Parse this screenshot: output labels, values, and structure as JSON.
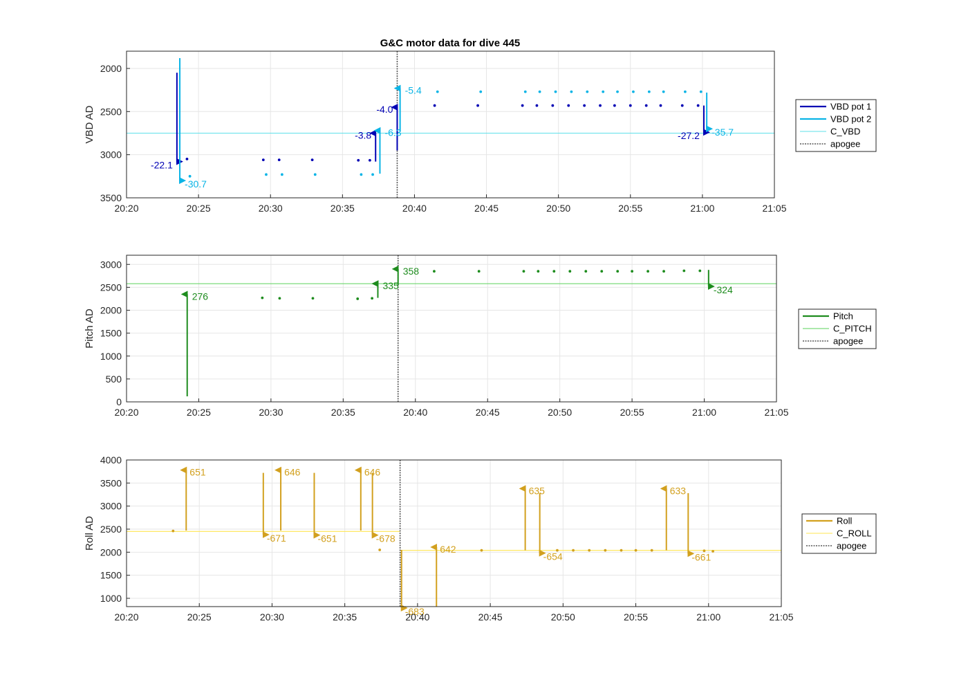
{
  "chart_data": [
    {
      "type": "line",
      "title": "G&C motor data for dive 445",
      "ylabel": "VBD AD",
      "xlabel": "",
      "x_ticks": [
        "20:20",
        "20:25",
        "20:30",
        "20:35",
        "20:40",
        "20:45",
        "20:50",
        "20:55",
        "21:00",
        "21:05"
      ],
      "xlim": [
        "20:20",
        "21:05"
      ],
      "ylim": [
        1800,
        3500
      ],
      "y_reversed": true,
      "y_ticks": [
        2000,
        2500,
        3000,
        3500
      ],
      "grid": true,
      "legend_position": "right",
      "colors": {
        "VBD pot 1": "#0000b4",
        "VBD pot 2": "#0ab4e6",
        "C_VBD": "#5ee0ea",
        "apogee": "#555555"
      },
      "series": [
        {
          "name": "VBD pot 1",
          "style": "moves",
          "moves": [
            {
              "t": "20:23.5",
              "from": 2050,
              "to": 3080,
              "label": "-22.1"
            },
            {
              "t": "20:37.3",
              "from": 3080,
              "to": 2750,
              "label": "-3.8"
            },
            {
              "t": "20:38.8",
              "from": 2950,
              "to": 2450,
              "label": "-4.0"
            },
            {
              "t": "21:00.1",
              "from": 2430,
              "to": 2740,
              "label": "-27.2"
            }
          ],
          "points": [
            [
              "20:24.2",
              3050
            ],
            [
              "20:29.5",
              3060
            ],
            [
              "20:30.6",
              3060
            ],
            [
              "20:32.9",
              3060
            ],
            [
              "20:36.1",
              3065
            ],
            [
              "20:36.9",
              3065
            ],
            [
              "20:41.4",
              2430
            ],
            [
              "20:44.4",
              2430
            ],
            [
              "20:47.5",
              2430
            ],
            [
              "20:48.5",
              2430
            ],
            [
              "20:49.6",
              2430
            ],
            [
              "20:50.7",
              2430
            ],
            [
              "20:51.8",
              2430
            ],
            [
              "20:52.9",
              2430
            ],
            [
              "20:53.9",
              2430
            ],
            [
              "20:55.0",
              2430
            ],
            [
              "20:56.1",
              2430
            ],
            [
              "20:57.1",
              2430
            ],
            [
              "20:58.6",
              2430
            ],
            [
              "20:59.7",
              2430
            ]
          ]
        },
        {
          "name": "VBD pot 2",
          "style": "moves",
          "moves": [
            {
              "t": "20:23.7",
              "from": 1880,
              "to": 3300,
              "label": "-30.7"
            },
            {
              "t": "20:37.6",
              "from": 3220,
              "to": 2720,
              "label": "-6.3"
            },
            {
              "t": "20:39.0",
              "from": 2730,
              "to": 2230,
              "label": "-5.4"
            },
            {
              "t": "21:00.3",
              "from": 2280,
              "to": 2700,
              "label": "-35.7"
            }
          ],
          "points": [
            [
              "20:24.4",
              3250
            ],
            [
              "20:29.7",
              3230
            ],
            [
              "20:30.8",
              3230
            ],
            [
              "20:33.1",
              3230
            ],
            [
              "20:36.3",
              3230
            ],
            [
              "20:37.1",
              3230
            ],
            [
              "20:41.6",
              2270
            ],
            [
              "20:44.6",
              2270
            ],
            [
              "20:47.7",
              2270
            ],
            [
              "20:48.7",
              2270
            ],
            [
              "20:49.8",
              2270
            ],
            [
              "20:50.9",
              2270
            ],
            [
              "20:52.0",
              2270
            ],
            [
              "20:53.1",
              2270
            ],
            [
              "20:54.1",
              2270
            ],
            [
              "20:55.2",
              2270
            ],
            [
              "20:56.3",
              2270
            ],
            [
              "20:57.3",
              2270
            ],
            [
              "20:58.8",
              2270
            ],
            [
              "20:59.9",
              2270
            ]
          ]
        },
        {
          "name": "C_VBD",
          "style": "hline",
          "y": 2750
        },
        {
          "name": "apogee",
          "style": "vline",
          "t": "20:38.8"
        }
      ]
    },
    {
      "type": "line",
      "title": "",
      "ylabel": "Pitch AD",
      "xlabel": "",
      "x_ticks": [
        "20:20",
        "20:25",
        "20:30",
        "20:35",
        "20:40",
        "20:45",
        "20:50",
        "20:55",
        "21:00",
        "21:05"
      ],
      "xlim": [
        "20:20",
        "21:05"
      ],
      "ylim": [
        0,
        3200
      ],
      "y_reversed": false,
      "y_ticks": [
        0,
        500,
        1000,
        1500,
        2000,
        2500,
        3000
      ],
      "grid": true,
      "legend_position": "right",
      "colors": {
        "Pitch": "#1e8c1e",
        "C_PITCH": "#5ad25a",
        "apogee": "#555555"
      },
      "series": [
        {
          "name": "Pitch",
          "style": "moves",
          "moves": [
            {
              "t": "20:24.2",
              "from": 120,
              "to": 2350,
              "label": "276"
            },
            {
              "t": "20:37.4",
              "from": 2270,
              "to": 2580,
              "label": "335"
            },
            {
              "t": "20:38.8",
              "from": 2550,
              "to": 2900,
              "label": "358"
            },
            {
              "t": "21:00.3",
              "from": 2880,
              "to": 2520,
              "label": "-324"
            }
          ],
          "points": [
            [
              "20:29.4",
              2270
            ],
            [
              "20:30.6",
              2260
            ],
            [
              "20:32.9",
              2260
            ],
            [
              "20:36.0",
              2250
            ],
            [
              "20:37.0",
              2260
            ],
            [
              "20:41.3",
              2850
            ],
            [
              "20:44.4",
              2850
            ],
            [
              "20:47.5",
              2850
            ],
            [
              "20:48.5",
              2850
            ],
            [
              "20:49.6",
              2850
            ],
            [
              "20:50.7",
              2850
            ],
            [
              "20:51.8",
              2850
            ],
            [
              "20:52.9",
              2850
            ],
            [
              "20:54.0",
              2850
            ],
            [
              "20:55.0",
              2850
            ],
            [
              "20:56.1",
              2850
            ],
            [
              "20:57.2",
              2850
            ],
            [
              "20:58.6",
              2860
            ],
            [
              "20:59.7",
              2860
            ]
          ]
        },
        {
          "name": "C_PITCH",
          "style": "hline",
          "y": 2580
        },
        {
          "name": "apogee",
          "style": "vline",
          "t": "20:38.8"
        }
      ]
    },
    {
      "type": "line",
      "title": "",
      "ylabel": "Roll AD",
      "xlabel": "",
      "x_ticks": [
        "20:20",
        "20:25",
        "20:30",
        "20:35",
        "20:40",
        "20:45",
        "20:50",
        "20:55",
        "21:00",
        "21:05"
      ],
      "xlim": [
        "20:20",
        "21:05"
      ],
      "ylim": [
        820,
        4000
      ],
      "y_reversed": false,
      "y_ticks": [
        1000,
        1500,
        2000,
        2500,
        3000,
        3500,
        4000
      ],
      "grid": true,
      "legend_position": "right",
      "colors": {
        "Roll": "#d2a01e",
        "C_ROLL": "#ffe650",
        "apogee": "#555555"
      },
      "series": [
        {
          "name": "Roll",
          "style": "moves",
          "moves": [
            {
              "t": "20:24.1",
              "from": 2470,
              "to": 3780,
              "label": "651"
            },
            {
              "t": "20:29.4",
              "from": 3720,
              "to": 2380,
              "label": "-671"
            },
            {
              "t": "20:30.6",
              "from": 2470,
              "to": 3780,
              "label": "646"
            },
            {
              "t": "20:32.9",
              "from": 3720,
              "to": 2370,
              "label": "-651"
            },
            {
              "t": "20:36.1",
              "from": 2470,
              "to": 3780,
              "label": "646"
            },
            {
              "t": "20:36.9",
              "from": 3720,
              "to": 2370,
              "label": "-678"
            },
            {
              "t": "20:38.9",
              "from": 2050,
              "to": 790,
              "label": "-683"
            },
            {
              "t": "20:41.3",
              "from": 820,
              "to": 2110,
              "label": "642"
            },
            {
              "t": "20:47.4",
              "from": 2040,
              "to": 3380,
              "label": "635"
            },
            {
              "t": "20:48.4",
              "from": 3280,
              "to": 1980,
              "label": "-654"
            },
            {
              "t": "20:57.1",
              "from": 2040,
              "to": 3380,
              "label": "633"
            },
            {
              "t": "20:58.6",
              "from": 3280,
              "to": 1970,
              "label": "-661"
            }
          ],
          "points": [
            [
              "20:23.2",
              2460
            ],
            [
              "20:37.4",
              2050
            ],
            [
              "20:44.4",
              2040
            ],
            [
              "20:49.6",
              2040
            ],
            [
              "20:50.7",
              2040
            ],
            [
              "20:51.8",
              2040
            ],
            [
              "20:52.9",
              2040
            ],
            [
              "20:54.0",
              2040
            ],
            [
              "20:55.0",
              2040
            ],
            [
              "20:56.1",
              2040
            ],
            [
              "20:59.7",
              2030
            ],
            [
              "21:00.3",
              2020
            ]
          ]
        },
        {
          "name": "C_ROLL",
          "style": "steps",
          "segments": [
            {
              "from": "20:20",
              "to": "20:38.8",
              "y": 2450
            },
            {
              "from": "20:38.8",
              "to": "21:05",
              "y": 2040
            }
          ]
        },
        {
          "name": "apogee",
          "style": "vline",
          "t": "20:38.8"
        }
      ]
    }
  ]
}
